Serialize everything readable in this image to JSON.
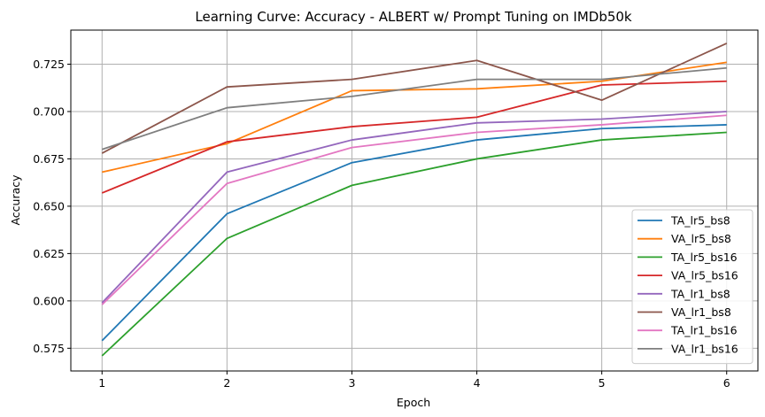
{
  "chart_data": {
    "type": "line",
    "title": "Learning Curve: Accuracy - ALBERT w/ Prompt Tuning on IMDb50k",
    "xlabel": "Epoch",
    "ylabel": "Accuracy",
    "x": [
      1,
      2,
      3,
      4,
      5,
      6
    ],
    "xticks": [
      "1",
      "2",
      "3",
      "4",
      "5",
      "6"
    ],
    "yticks": [
      "0.575",
      "0.600",
      "0.625",
      "0.650",
      "0.675",
      "0.700",
      "0.725"
    ],
    "ytick_values": [
      0.575,
      0.6,
      0.625,
      0.65,
      0.675,
      0.7,
      0.725
    ],
    "xlim": [
      0.75,
      6.25
    ],
    "ylim": [
      0.563,
      0.743
    ],
    "grid": true,
    "legend_position": "lower-right",
    "series": [
      {
        "name": "TA_lr5_bs8",
        "color": "#1f77b4",
        "values": [
          0.579,
          0.646,
          0.673,
          0.685,
          0.691,
          0.693
        ]
      },
      {
        "name": "VA_lr5_bs8",
        "color": "#ff7f0e",
        "values": [
          0.668,
          0.683,
          0.711,
          0.712,
          0.716,
          0.726
        ]
      },
      {
        "name": "TA_lr5_bs16",
        "color": "#2ca02c",
        "values": [
          0.571,
          0.633,
          0.661,
          0.675,
          0.685,
          0.689
        ]
      },
      {
        "name": "VA_lr5_bs16",
        "color": "#d62728",
        "values": [
          0.657,
          0.684,
          0.692,
          0.697,
          0.714,
          0.716
        ]
      },
      {
        "name": "TA_lr1_bs8",
        "color": "#9467bd",
        "values": [
          0.599,
          0.668,
          0.685,
          0.694,
          0.696,
          0.7
        ]
      },
      {
        "name": "VA_lr1_bs8",
        "color": "#8c564b",
        "values": [
          0.678,
          0.713,
          0.717,
          0.727,
          0.706,
          0.736
        ]
      },
      {
        "name": "TA_lr1_bs16",
        "color": "#e377c2",
        "values": [
          0.598,
          0.662,
          0.681,
          0.689,
          0.693,
          0.698
        ]
      },
      {
        "name": "VA_lr1_bs16",
        "color": "#7f7f7f",
        "values": [
          0.68,
          0.702,
          0.708,
          0.717,
          0.717,
          0.723
        ]
      }
    ]
  }
}
